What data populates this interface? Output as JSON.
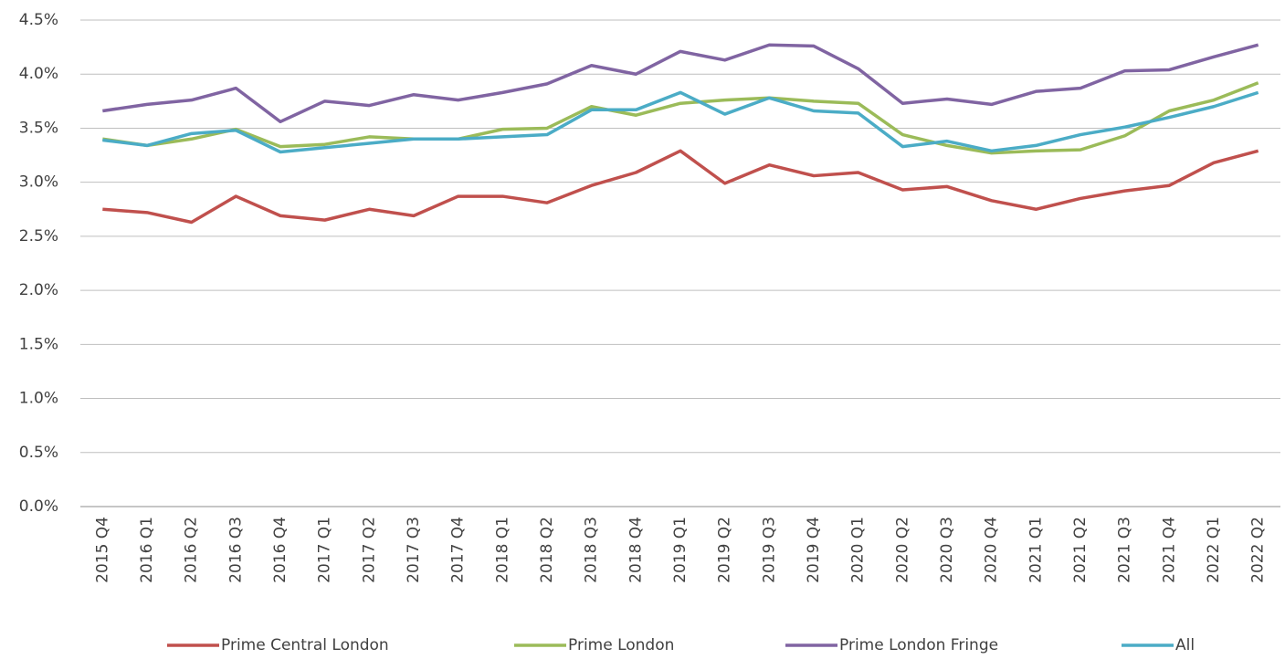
{
  "chart_data": {
    "type": "line",
    "categories": [
      "2015 Q4",
      "2016 Q1",
      "2016 Q2",
      "2016 Q3",
      "2016 Q4",
      "2017 Q1",
      "2017 Q2",
      "2017 Q3",
      "2017 Q4",
      "2018 Q1",
      "2018 Q2",
      "2018 Q3",
      "2018 Q4",
      "2019 Q1",
      "2019 Q2",
      "2019 Q3",
      "2019 Q4",
      "2020 Q1",
      "2020 Q2",
      "2020 Q3",
      "2020 Q4",
      "2021 Q1",
      "2021 Q2",
      "2021 Q3",
      "2021 Q4",
      "2022 Q1",
      "2022 Q2"
    ],
    "series": [
      {
        "name": "Prime Central London",
        "color": "#c0504d",
        "values": [
          2.75,
          2.72,
          2.63,
          2.87,
          2.69,
          2.65,
          2.75,
          2.69,
          2.87,
          2.87,
          2.81,
          2.97,
          3.09,
          3.29,
          2.99,
          3.16,
          3.06,
          3.09,
          2.93,
          2.96,
          2.83,
          2.75,
          2.85,
          2.92,
          2.97,
          3.18,
          3.29
        ]
      },
      {
        "name": "Prime London",
        "color": "#9bbb59",
        "values": [
          3.4,
          3.34,
          3.4,
          3.49,
          3.33,
          3.35,
          3.42,
          3.4,
          3.4,
          3.49,
          3.5,
          3.7,
          3.62,
          3.73,
          3.76,
          3.78,
          3.75,
          3.73,
          3.44,
          3.34,
          3.27,
          3.29,
          3.3,
          3.43,
          3.66,
          3.76,
          3.92
        ]
      },
      {
        "name": "Prime London Fringe",
        "color": "#8064a2",
        "values": [
          3.66,
          3.72,
          3.76,
          3.87,
          3.56,
          3.75,
          3.71,
          3.81,
          3.76,
          3.83,
          3.91,
          4.08,
          4.0,
          4.21,
          4.13,
          4.27,
          4.26,
          4.05,
          3.73,
          3.77,
          3.72,
          3.84,
          3.87,
          4.03,
          4.04,
          4.16,
          4.27
        ]
      },
      {
        "name": "All",
        "color": "#4bacc6",
        "values": [
          3.39,
          3.34,
          3.45,
          3.48,
          3.28,
          3.32,
          3.36,
          3.4,
          3.4,
          3.42,
          3.44,
          3.67,
          3.67,
          3.83,
          3.63,
          3.78,
          3.66,
          3.64,
          3.33,
          3.38,
          3.29,
          3.34,
          3.44,
          3.51,
          3.6,
          3.7,
          3.83
        ]
      }
    ],
    "ylim": [
      0,
      4.5
    ],
    "yticks": [
      {
        "value": 0,
        "label": "0.0%"
      },
      {
        "value": 0.5,
        "label": "0.5%"
      },
      {
        "value": 1,
        "label": "1.0%"
      },
      {
        "value": 1.5,
        "label": "1.5%"
      },
      {
        "value": 2,
        "label": "2.0%"
      },
      {
        "value": 2.5,
        "label": "2.5%"
      },
      {
        "value": 3,
        "label": "3.0%"
      },
      {
        "value": 3.5,
        "label": "3.5%"
      },
      {
        "value": 4,
        "label": "4.0%"
      },
      {
        "value": 4.5,
        "label": "4.5%"
      }
    ],
    "grid": true,
    "legend": "bottom"
  }
}
